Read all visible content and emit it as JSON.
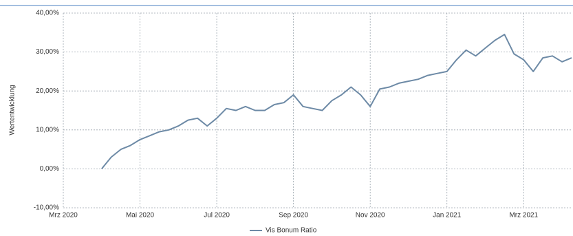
{
  "chart_data": {
    "type": "line",
    "y_label": "Wertentwicklung",
    "categories": [
      "Mrz 2020",
      null,
      null,
      null,
      null,
      null,
      null,
      null,
      "Mai 2020",
      null,
      null,
      null,
      null,
      null,
      null,
      null,
      "Jul 2020",
      null,
      null,
      null,
      null,
      null,
      null,
      null,
      "Sep 2020",
      null,
      null,
      null,
      null,
      null,
      null,
      null,
      "Nov 2020",
      null,
      null,
      null,
      null,
      null,
      null,
      null,
      "Jan 2021",
      null,
      null,
      null,
      null,
      null,
      null,
      null,
      "Mrz 2021",
      null,
      null,
      null,
      null,
      null
    ],
    "series": [
      {
        "name": "Vis Bonum Ratio",
        "color": "#6d8aa6",
        "values": [
          null,
          null,
          null,
          null,
          0,
          3,
          5,
          6,
          7.5,
          8.5,
          9.5,
          10,
          11,
          12.5,
          13,
          11,
          13,
          15.5,
          15,
          16,
          15,
          15,
          16.5,
          17,
          19,
          16,
          15.5,
          15,
          17.5,
          19,
          21,
          19,
          16,
          20.5,
          21,
          22,
          22.5,
          23,
          24,
          24.5,
          25,
          28,
          30.5,
          29,
          31,
          33,
          34.5,
          29.5,
          28,
          25,
          28.5,
          29,
          27.5,
          28.5
        ]
      }
    ],
    "ylim": [
      -10,
      40
    ],
    "yticks": [
      {
        "value": -10,
        "label": "-10,00%"
      },
      {
        "value": 0,
        "label": "0,00%"
      },
      {
        "value": 10,
        "label": "10,00%"
      },
      {
        "value": 20,
        "label": "20,00%"
      },
      {
        "value": 30,
        "label": "30,00%"
      },
      {
        "value": 40,
        "label": "40,00%"
      }
    ],
    "grid": true
  }
}
